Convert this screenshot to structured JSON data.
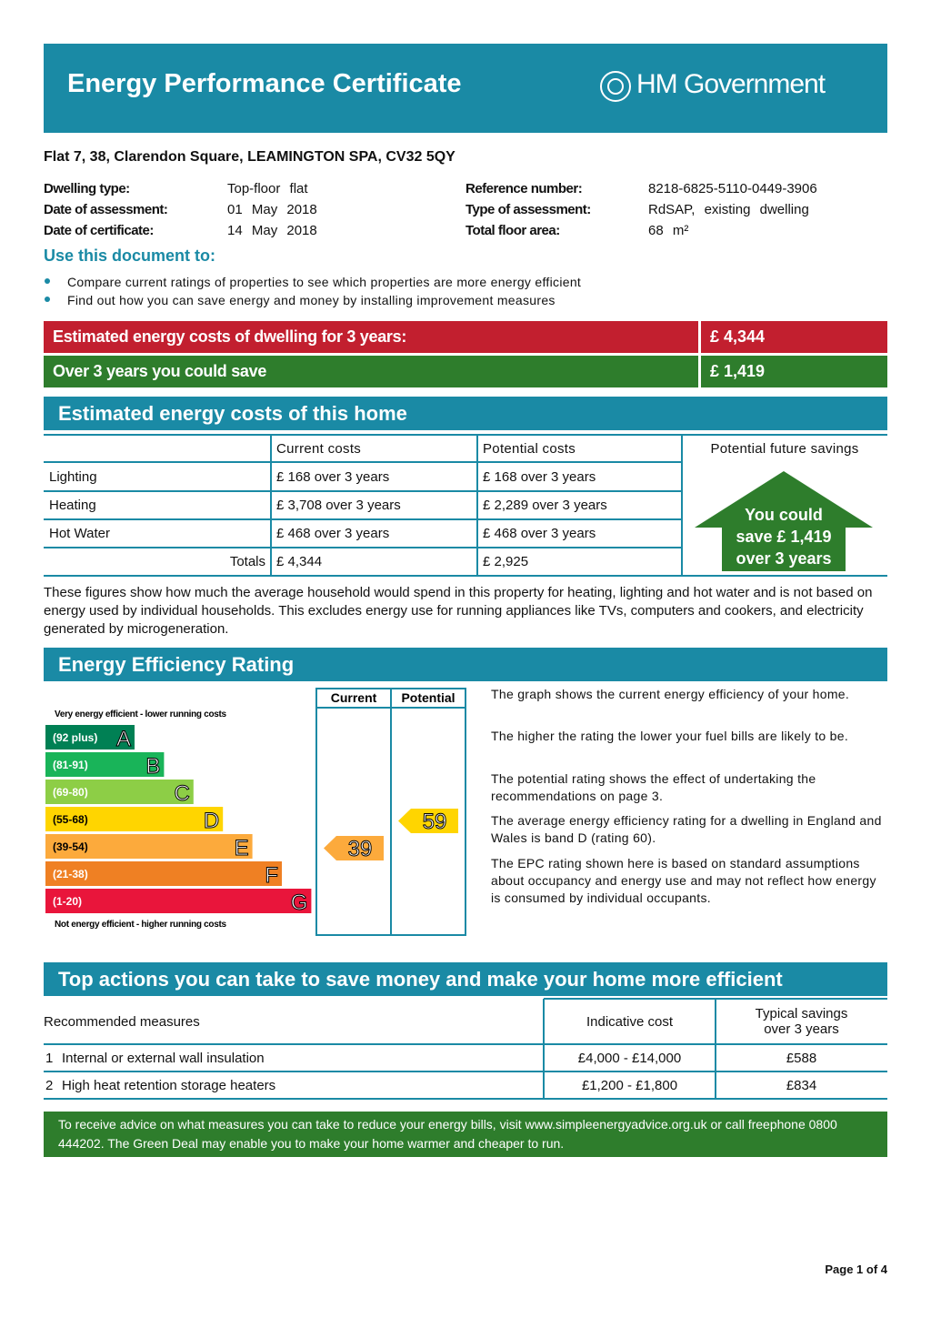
{
  "header": {
    "title": "Energy Performance Certificate",
    "logo": "HM Government"
  },
  "address": "Flat 7, 38, Clarendon Square, LEAMINGTON SPA, CV32 5QY",
  "details": {
    "left": [
      {
        "label": "Dwelling type:",
        "value": "Top-floor flat"
      },
      {
        "label": "Date of assessment:",
        "value": "01 May 2018"
      },
      {
        "label": "Date of certificate:",
        "value": "14 May 2018"
      }
    ],
    "right": [
      {
        "label": "Reference number:",
        "value": "8218-6825-5110-0449-3906"
      },
      {
        "label": "Type of assessment:",
        "value": "RdSAP, existing dwelling"
      },
      {
        "label": "Total floor area:",
        "value": "68 m²"
      }
    ]
  },
  "use_document": {
    "heading": "Use this document to:",
    "bullets": [
      "Compare current ratings of properties to see which properties are more energy efficient",
      "Find out how you can save energy and money by installing improvement measures"
    ]
  },
  "summary": [
    {
      "label": "Estimated energy costs of dwelling for 3 years:",
      "value": "£ 4,344",
      "color": "#c21f2f"
    },
    {
      "label": "Over 3 years you could save",
      "value": "£ 1,419",
      "color": "#2e7d2c"
    }
  ],
  "costs": {
    "heading": "Estimated energy costs of this home",
    "columns": [
      "Current costs",
      "Potential costs",
      "Potential future savings"
    ],
    "rows": [
      {
        "item": "Lighting",
        "current": "£ 168 over 3 years",
        "potential": "£ 168 over 3 years"
      },
      {
        "item": "Heating",
        "current": "£ 3,708 over 3 years",
        "potential": "£ 2,289 over 3 years"
      },
      {
        "item": "Hot Water",
        "current": "£ 468 over 3 years",
        "potential": "£ 468 over 3 years"
      }
    ],
    "totals": {
      "label": "Totals",
      "current": "£ 4,344",
      "potential": "£ 2,925"
    },
    "savings_arrow": [
      "You could",
      "save £ 1,419",
      "over 3 years"
    ],
    "note": "These figures show how much the average household would spend in this property for heating, lighting and hot water and is not based on energy used by individual households. This excludes energy use for running appliances like TVs, computers and cookers, and electricity generated by microgeneration."
  },
  "rating": {
    "heading": "Energy Efficiency Rating",
    "columns": [
      "Current",
      "Potential"
    ],
    "top_label": "Very energy efficient - lower running costs",
    "bottom_label": "Not energy efficient - higher running costs",
    "bands": [
      {
        "range": "(92 plus)",
        "letter": "A",
        "color": "#008054"
      },
      {
        "range": "(81-91)",
        "letter": "B",
        "color": "#19b459"
      },
      {
        "range": "(69-80)",
        "letter": "C",
        "color": "#8dce46"
      },
      {
        "range": "(55-68)",
        "letter": "D",
        "color": "#ffd500"
      },
      {
        "range": "(39-54)",
        "letter": "E",
        "color": "#fcaa3c"
      },
      {
        "range": "(21-38)",
        "letter": "F",
        "color": "#ef8023"
      },
      {
        "range": "(1-20)",
        "letter": "G",
        "color": "#e9153b"
      }
    ],
    "current": 39,
    "potential": 59,
    "notes": [
      "The graph shows the current energy efficiency of your home.",
      "The higher the rating the lower your fuel bills are likely to be.",
      "The potential rating shows the effect of undertaking the recommendations on page 3.",
      "The average energy efficiency rating for a dwelling in England and Wales is band D (rating 60).",
      "The EPC rating shown here is based on standard assumptions about occupancy and energy use and may not reflect how energy is consumed by individual occupants."
    ]
  },
  "actions": {
    "heading": "Top actions you can take to save money and make your home more efficient",
    "columns": [
      "Recommended measures",
      "Indicative cost",
      "Typical savings over 3 years"
    ],
    "rows": [
      {
        "number": "1",
        "measure": "Internal or external wall insulation",
        "cost": "£4,000 - £14,000",
        "saving": "£588"
      },
      {
        "number": "2",
        "measure": "High heat retention storage heaters",
        "cost": "£1,200 - £1,800",
        "saving": "£834"
      }
    ]
  },
  "advice": "To receive advice on what measures you can take to reduce your energy bills, visit www.simpleenergyadvice.org.uk or call freephone 0800 444202. The Green Deal may enable you to make your home warmer and cheaper to run.",
  "page": "Page 1 of 4"
}
